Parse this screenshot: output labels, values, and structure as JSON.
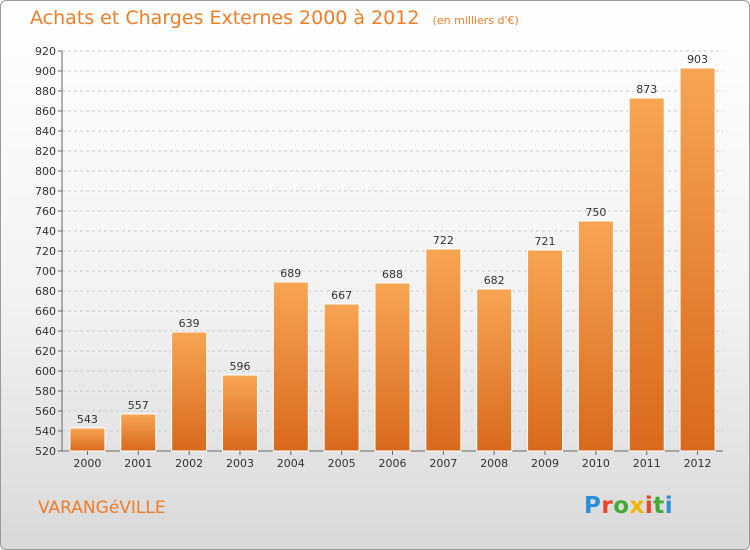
{
  "header": {
    "title": "Achats et Charges Externes 2000 à 2012",
    "unit": "(en milliers d'€)"
  },
  "footer": {
    "commune": "VARANGéVILLE",
    "logo": "Proxiti",
    "logo_colors": [
      "#2a8fd6",
      "#e8452c",
      "#44a83a",
      "#f0b400",
      "#e8452c",
      "#44a83a",
      "#2a8fd6"
    ]
  },
  "colors": {
    "bar_top": "#f7a553",
    "bar_bottom": "#d9691c",
    "title": "#f07d26",
    "grid": "#cccccc"
  },
  "chart_data": {
    "type": "bar",
    "title": "Achats et Charges Externes 2000 à 2012",
    "subtitle": "(en milliers d'€)",
    "categories": [
      "2000",
      "2001",
      "2002",
      "2003",
      "2004",
      "2005",
      "2006",
      "2007",
      "2008",
      "2009",
      "2010",
      "2011",
      "2012"
    ],
    "values": [
      543,
      557,
      639,
      596,
      689,
      667,
      688,
      722,
      682,
      721,
      750,
      873,
      903
    ],
    "ylim": [
      520,
      920
    ],
    "yticks": [
      520,
      540,
      560,
      580,
      600,
      620,
      640,
      660,
      680,
      700,
      720,
      740,
      760,
      780,
      800,
      820,
      840,
      860,
      880,
      900,
      920
    ],
    "grid": true,
    "legend": "none"
  }
}
